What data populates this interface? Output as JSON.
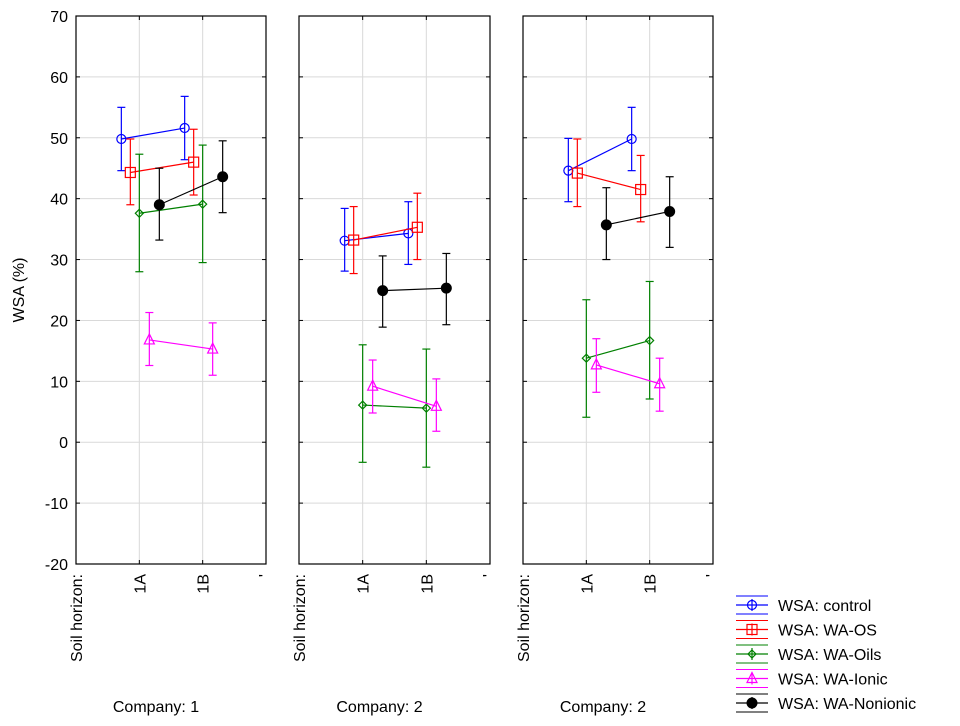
{
  "chart_data": {
    "type": "line",
    "ylabel": "WSA (%)",
    "ylim": [
      -20,
      70
    ],
    "yticks": [
      70,
      60,
      50,
      40,
      30,
      20,
      10,
      0,
      -10,
      -20
    ],
    "grid": true,
    "x_factor_label": "Soil horizon:",
    "categories": [
      "1A",
      "1B"
    ],
    "trailing_tick": "'",
    "legend_position": "bottom-right",
    "series_styles": [
      {
        "name": "WSA: control",
        "color": "#0000ff",
        "marker": "circle"
      },
      {
        "name": "WSA: WA-OS",
        "color": "#ff0000",
        "marker": "square"
      },
      {
        "name": "WSA: WA-Oils",
        "color": "#008000",
        "marker": "diamond"
      },
      {
        "name": "WSA: WA-Ionic",
        "color": "#ff00ff",
        "marker": "triangle"
      },
      {
        "name": "WSA: WA-Nonionic",
        "color": "#000000",
        "marker": "filled-circle"
      }
    ],
    "panels": [
      {
        "title": "Company: 1",
        "series": [
          {
            "name": "WSA: control",
            "values": [
              49.8,
              51.6
            ],
            "lower": [
              44.6,
              46.4
            ],
            "upper": [
              55.0,
              56.8
            ]
          },
          {
            "name": "WSA: WA-OS",
            "values": [
              44.3,
              46.0
            ],
            "lower": [
              39.0,
              40.6
            ],
            "upper": [
              49.8,
              51.4
            ]
          },
          {
            "name": "WSA: WA-Oils",
            "values": [
              37.6,
              39.1
            ],
            "lower": [
              28.0,
              29.5
            ],
            "upper": [
              47.3,
              48.8
            ]
          },
          {
            "name": "WSA: WA-Ionic",
            "values": [
              16.8,
              15.3
            ],
            "lower": [
              12.6,
              11.0
            ],
            "upper": [
              21.3,
              19.6
            ]
          },
          {
            "name": "WSA: WA-Nonionic",
            "values": [
              39.0,
              43.6
            ],
            "lower": [
              33.2,
              37.7
            ],
            "upper": [
              45.0,
              49.5
            ]
          }
        ]
      },
      {
        "title": "Company: 2",
        "series": [
          {
            "name": "WSA: control",
            "values": [
              33.1,
              34.3
            ],
            "lower": [
              28.1,
              29.2
            ],
            "upper": [
              38.4,
              39.5
            ]
          },
          {
            "name": "WSA: WA-OS",
            "values": [
              33.2,
              35.3
            ],
            "lower": [
              27.7,
              30.0
            ],
            "upper": [
              38.7,
              40.9
            ]
          },
          {
            "name": "WSA: WA-Oils",
            "values": [
              6.1,
              5.6
            ],
            "lower": [
              -3.3,
              -4.1
            ],
            "upper": [
              16.0,
              15.3
            ]
          },
          {
            "name": "WSA: WA-Ionic",
            "values": [
              9.2,
              5.9
            ],
            "lower": [
              4.8,
              1.8
            ],
            "upper": [
              13.5,
              10.4
            ]
          },
          {
            "name": "WSA: WA-Nonionic",
            "values": [
              24.9,
              25.3
            ],
            "lower": [
              18.9,
              19.3
            ],
            "upper": [
              30.6,
              31.0
            ]
          }
        ]
      },
      {
        "title": "Company: 2",
        "series": [
          {
            "name": "WSA: control",
            "values": [
              44.6,
              49.8
            ],
            "lower": [
              39.5,
              44.6
            ],
            "upper": [
              49.9,
              55.0
            ]
          },
          {
            "name": "WSA: WA-OS",
            "values": [
              44.2,
              41.5
            ],
            "lower": [
              38.7,
              36.2
            ],
            "upper": [
              49.8,
              47.1
            ]
          },
          {
            "name": "WSA: WA-Oils",
            "values": [
              13.8,
              16.7
            ],
            "lower": [
              4.1,
              7.1
            ],
            "upper": [
              23.4,
              26.4
            ]
          },
          {
            "name": "WSA: WA-Ionic",
            "values": [
              12.7,
              9.6
            ],
            "lower": [
              8.2,
              5.1
            ],
            "upper": [
              17.0,
              13.8
            ]
          },
          {
            "name": "WSA: WA-Nonionic",
            "values": [
              35.7,
              37.9
            ],
            "lower": [
              30.0,
              32.0
            ],
            "upper": [
              41.8,
              43.6
            ]
          }
        ]
      }
    ]
  }
}
